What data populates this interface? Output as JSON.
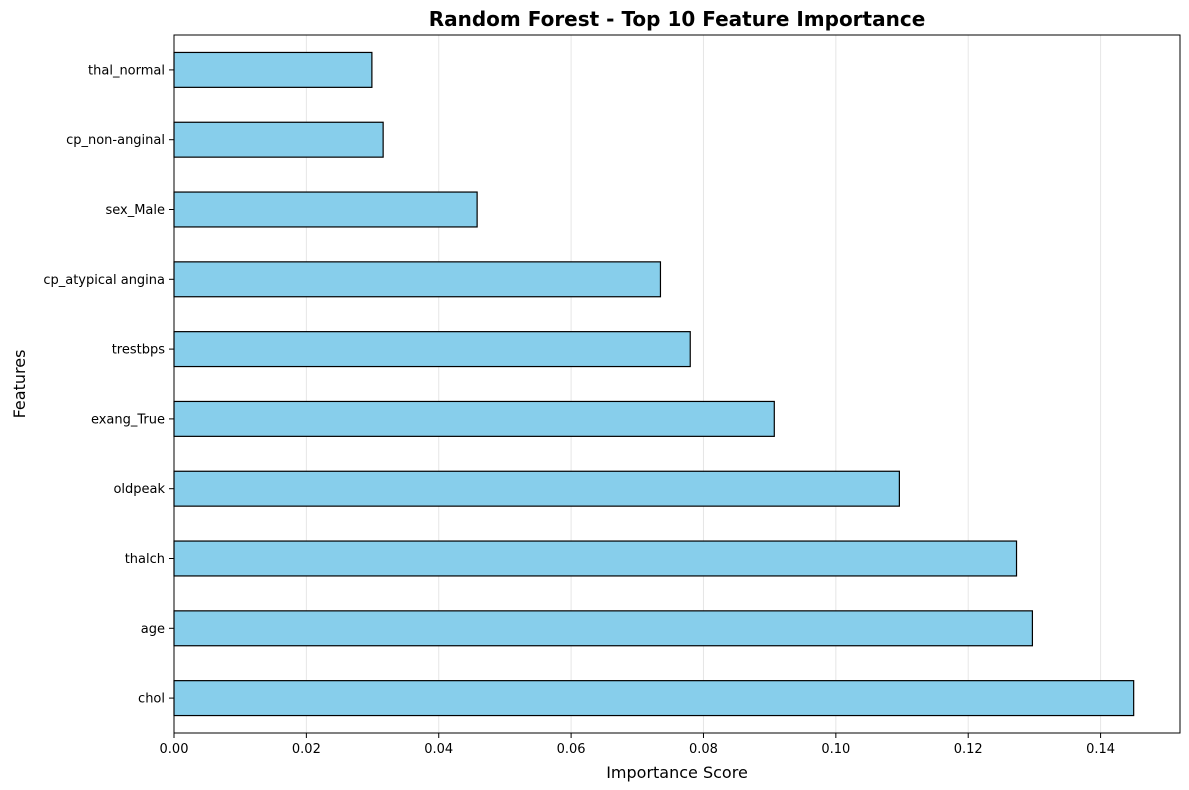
{
  "chart_data": {
    "type": "bar",
    "orientation": "horizontal",
    "title": "Random Forest - Top 10 Feature Importance",
    "xlabel": "Importance Score",
    "ylabel": "Features",
    "categories": [
      "chol",
      "age",
      "thalch",
      "oldpeak",
      "exang_True",
      "trestbps",
      "cp_atypical angina",
      "sex_Male",
      "cp_non-anginal",
      "thal_normal"
    ],
    "values": [
      0.145,
      0.1297,
      0.1273,
      0.1096,
      0.0907,
      0.078,
      0.0735,
      0.0458,
      0.0316,
      0.0299
    ],
    "xlim": [
      0.0,
      0.152
    ],
    "xticks": [
      "0.00",
      "0.02",
      "0.04",
      "0.06",
      "0.08",
      "0.10",
      "0.12",
      "0.14"
    ],
    "grid": "x-axis",
    "bar_color": "#87ceeb",
    "edge_color": "#000000"
  }
}
